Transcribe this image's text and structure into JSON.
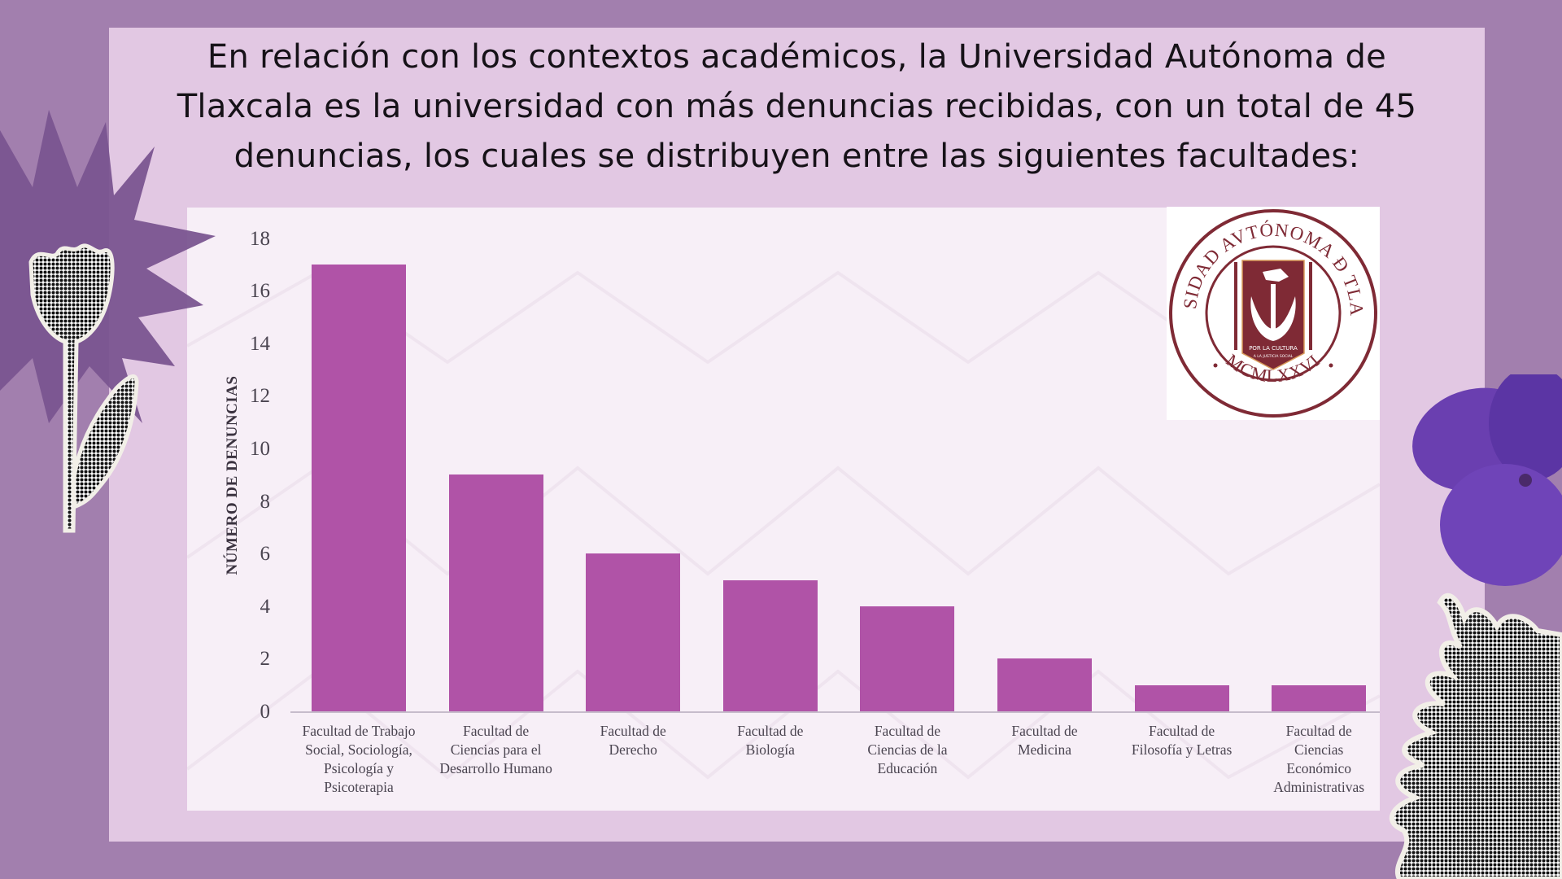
{
  "headline": {
    "line1": "En relación con los contextos académicos, la Universidad Autónoma de",
    "line2": "Tlaxcala es la universidad con más denuncias recibidas, con un total de 45",
    "line3": "denuncias, los cuales se distribuyen entre las siguientes facultades:"
  },
  "colors": {
    "background": "#a27fae",
    "panel": "#e2c8e3",
    "chart_bg": "#f7eff7",
    "bar": "#b053a7",
    "logo_maroon": "#7f2a35"
  },
  "logo": {
    "arc_top": "UNIVERSIDAD AVTÓNOMA Đ TLAXCALA",
    "arc_bottom": "MCMLXXVI",
    "motto1": "POR LA CULTURA",
    "motto2": "A LA JUSTICIA SOCIAL"
  },
  "chart_data": {
    "type": "bar",
    "title": "",
    "xlabel": "",
    "ylabel": "NÚMERO DE DENUNCIAS",
    "ylim": [
      0,
      18
    ],
    "yticks": [
      "0",
      "2",
      "4",
      "6",
      "8",
      "10",
      "12",
      "14",
      "16",
      "18"
    ],
    "grid": false,
    "legend": null,
    "categories": [
      "Facultad de Trabajo Social, Sociología, Psicología y Psicoterapia",
      "Facultad de Ciencias para el Desarrollo Humano",
      "Facultad de Derecho",
      "Facultad de Biología",
      "Facultad de Ciencias de la Educación",
      "Facultad de Medicina",
      "Facultad de Filosofía y Letras",
      "Facultad de Ciencias Económico Administrativas"
    ],
    "category_lines": [
      [
        "Facultad de Trabajo",
        "Social, Sociología,",
        "Psicología y",
        "Psicoterapia"
      ],
      [
        "Facultad de",
        "Ciencias para el",
        "Desarrollo Humano"
      ],
      [
        "Facultad de",
        "Derecho"
      ],
      [
        "Facultad de",
        "Biología"
      ],
      [
        "Facultad de",
        "Ciencias de la",
        "Educación"
      ],
      [
        "Facultad de",
        "Medicina"
      ],
      [
        "Facultad de",
        "Filosofía y Letras"
      ],
      [
        "Facultad de",
        "Ciencias",
        "Económico",
        "Administrativas"
      ]
    ],
    "values": [
      17,
      9,
      6,
      5,
      4,
      2,
      1,
      1
    ],
    "total": 45
  }
}
